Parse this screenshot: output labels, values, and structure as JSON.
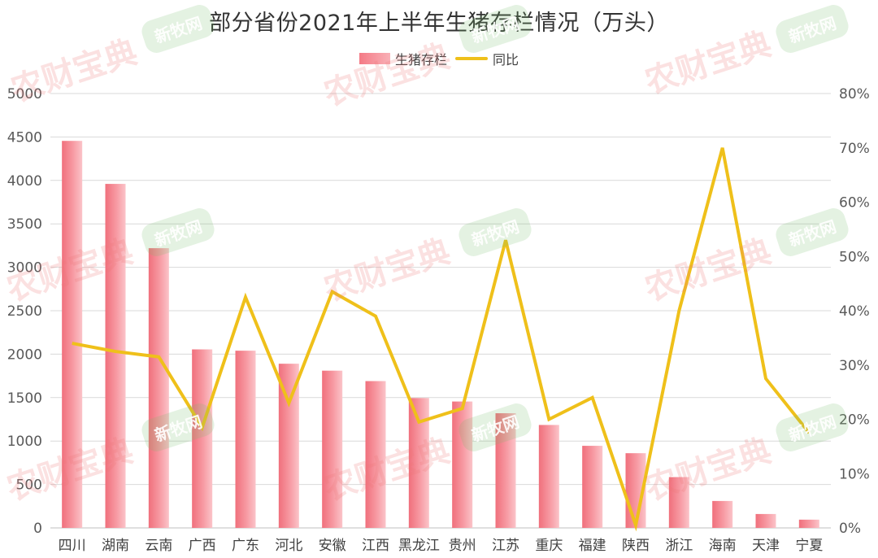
{
  "chart_data": {
    "type": "bar",
    "title": "部分省份2021年上半年生猪存栏情况（万头）",
    "categories": [
      "四川",
      "湖南",
      "云南",
      "广西",
      "广东",
      "河北",
      "安徽",
      "江西",
      "黑龙江",
      "贵州",
      "江苏",
      "重庆",
      "福建",
      "陕西",
      "浙江",
      "海南",
      "天津",
      "宁夏"
    ],
    "series": [
      {
        "name": "生猪存栏",
        "type": "bar",
        "axis": "left",
        "color": "#f47a85",
        "values": [
          4455,
          3960,
          3220,
          2055,
          2040,
          1890,
          1810,
          1690,
          1495,
          1455,
          1320,
          1185,
          945,
          860,
          585,
          310,
          160,
          95
        ]
      },
      {
        "name": "同比",
        "type": "line",
        "axis": "right",
        "color": "#efc01a",
        "values": [
          34,
          32.5,
          31.5,
          18.5,
          42.5,
          23,
          43.5,
          39,
          19.5,
          22,
          53,
          20,
          24,
          0.5,
          40,
          70,
          27.5,
          17.5
        ]
      }
    ],
    "ylim": [
      0,
      5000
    ],
    "yticks": [
      0,
      500,
      1000,
      1500,
      2000,
      2500,
      3000,
      3500,
      4000,
      4500,
      5000
    ],
    "y2lim": [
      0,
      80
    ],
    "y2ticks": [
      "0%",
      "10%",
      "20%",
      "30%",
      "40%",
      "50%",
      "60%",
      "70%",
      "80%"
    ],
    "grid": true,
    "legend_position": "top-center"
  },
  "watermarks": {
    "red_text": "农财宝典",
    "green_text": "新牧网"
  }
}
